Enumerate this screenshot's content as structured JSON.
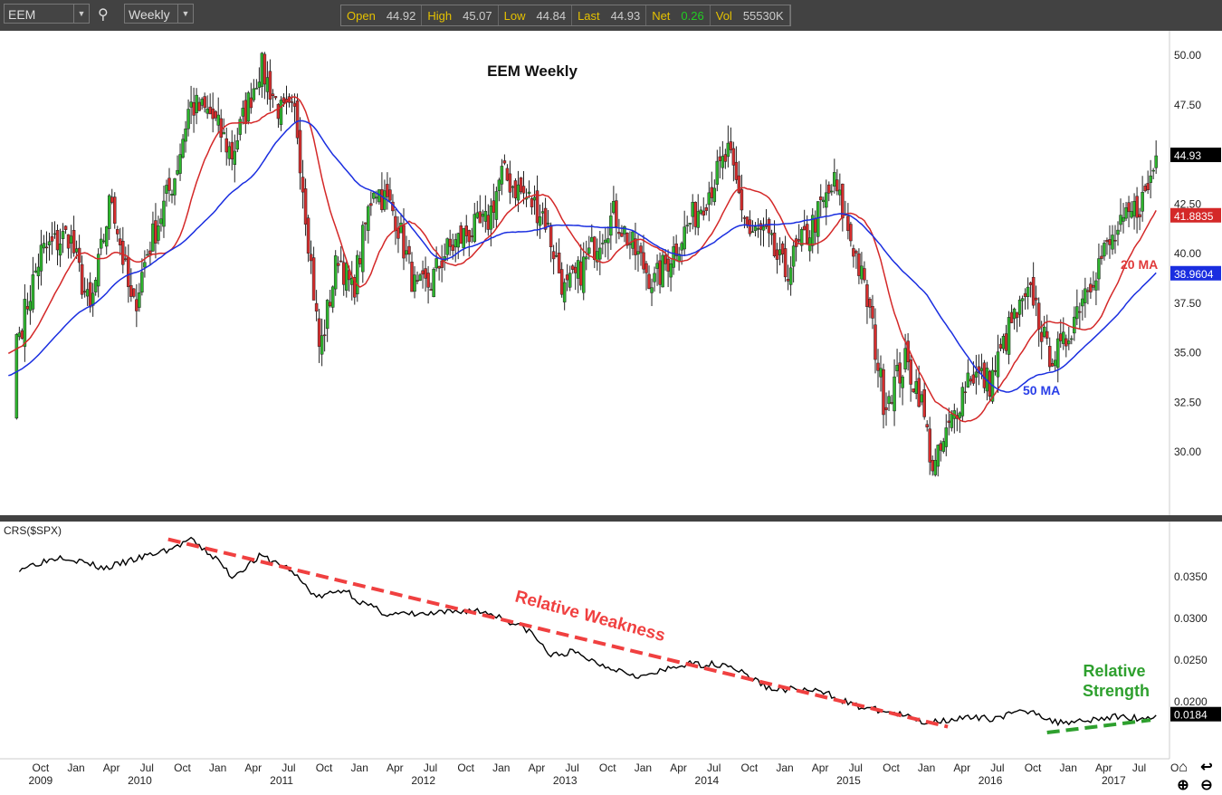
{
  "toolbar": {
    "symbol": "EEM",
    "period": "Weekly",
    "quote": [
      {
        "label": "Open",
        "value": "44.92"
      },
      {
        "label": "High",
        "value": "45.07"
      },
      {
        "label": "Low",
        "value": "44.84"
      },
      {
        "label": "Last",
        "value": "44.93"
      },
      {
        "label": "Net",
        "value": "0.26"
      },
      {
        "label": "Vol",
        "value": "55530K"
      }
    ]
  },
  "colors": {
    "up": "#2db52d",
    "down": "#d62d2d",
    "ma20": "#d42828",
    "ma50": "#1a2ee0",
    "weak": "#f04040",
    "strong": "#2ea02e",
    "net": "#22cc22"
  },
  "chart_data": [
    {
      "type": "candlestick",
      "title": "EEM Weekly",
      "ylim": [
        27.5,
        51.2
      ],
      "yticks": [
        "50.00",
        "47.50",
        "42.50",
        "40.00",
        "37.50",
        "35.00",
        "32.50",
        "30.00"
      ],
      "close_keypoints": [
        [
          2009.6,
          36
        ],
        [
          2009.75,
          40
        ],
        [
          2009.95,
          41
        ],
        [
          2010.1,
          37
        ],
        [
          2010.25,
          43
        ],
        [
          2010.4,
          37
        ],
        [
          2010.5,
          40
        ],
        [
          2010.7,
          44
        ],
        [
          2010.8,
          47.5
        ],
        [
          2010.95,
          47
        ],
        [
          2011.1,
          45
        ],
        [
          2011.3,
          49.5
        ],
        [
          2011.45,
          47
        ],
        [
          2011.55,
          47
        ],
        [
          2011.65,
          40
        ],
        [
          2011.72,
          35
        ],
        [
          2011.85,
          40
        ],
        [
          2011.95,
          38
        ],
        [
          2012.1,
          43.5
        ],
        [
          2012.25,
          42
        ],
        [
          2012.4,
          38
        ],
        [
          2012.5,
          38.5
        ],
        [
          2012.6,
          40
        ],
        [
          2012.75,
          41
        ],
        [
          2012.9,
          41.5
        ],
        [
          2013.0,
          44
        ],
        [
          2013.15,
          43
        ],
        [
          2013.3,
          42
        ],
        [
          2013.45,
          38
        ],
        [
          2013.55,
          39
        ],
        [
          2013.7,
          41
        ],
        [
          2013.8,
          42
        ],
        [
          2013.95,
          40
        ],
        [
          2014.08,
          38.5
        ],
        [
          2014.2,
          40
        ],
        [
          2014.45,
          43
        ],
        [
          2014.6,
          45
        ],
        [
          2014.75,
          41
        ],
        [
          2014.85,
          41
        ],
        [
          2015.0,
          39
        ],
        [
          2015.2,
          41.5
        ],
        [
          2015.35,
          43.5
        ],
        [
          2015.5,
          40
        ],
        [
          2015.6,
          37
        ],
        [
          2015.7,
          32.5
        ],
        [
          2015.85,
          34.5
        ],
        [
          2015.95,
          33
        ],
        [
          2016.05,
          29
        ],
        [
          2016.15,
          31
        ],
        [
          2016.3,
          34
        ],
        [
          2016.45,
          33.5
        ],
        [
          2016.6,
          36.5
        ],
        [
          2016.75,
          38
        ],
        [
          2016.85,
          35
        ],
        [
          2016.95,
          35
        ],
        [
          2017.1,
          38
        ],
        [
          2017.25,
          40
        ],
        [
          2017.4,
          41.5
        ],
        [
          2017.55,
          43
        ],
        [
          2017.62,
          44.93
        ]
      ],
      "last_price": "44.93",
      "ma20_value": "41.8835",
      "ma50_value": "38.9604",
      "annotations": {
        "ma20": "20 MA",
        "ma50": "50 MA"
      }
    },
    {
      "type": "line",
      "title": "CRS($SPX)",
      "ylim": [
        0.016,
        0.04
      ],
      "yticks": [
        "0.0350",
        "0.0300",
        "0.0250",
        "0.0200"
      ],
      "keypoints": [
        [
          2009.6,
          0.036
        ],
        [
          2009.9,
          0.0375
        ],
        [
          2010.2,
          0.036
        ],
        [
          2010.7,
          0.0385
        ],
        [
          2010.8,
          0.0395
        ],
        [
          2011.0,
          0.037
        ],
        [
          2011.1,
          0.035
        ],
        [
          2011.3,
          0.0375
        ],
        [
          2011.5,
          0.036
        ],
        [
          2011.7,
          0.0325
        ],
        [
          2011.9,
          0.0335
        ],
        [
          2012.0,
          0.032
        ],
        [
          2012.2,
          0.0305
        ],
        [
          2012.5,
          0.0305
        ],
        [
          2012.8,
          0.031
        ],
        [
          2012.95,
          0.0305
        ],
        [
          2013.2,
          0.0285
        ],
        [
          2013.35,
          0.0255
        ],
        [
          2013.5,
          0.026
        ],
        [
          2013.7,
          0.0245
        ],
        [
          2014.0,
          0.023
        ],
        [
          2014.3,
          0.0245
        ],
        [
          2014.6,
          0.0245
        ],
        [
          2014.9,
          0.0215
        ],
        [
          2015.1,
          0.0215
        ],
        [
          2015.3,
          0.021
        ],
        [
          2015.5,
          0.0195
        ],
        [
          2015.8,
          0.0185
        ],
        [
          2016.0,
          0.0175
        ],
        [
          2016.2,
          0.018
        ],
        [
          2016.45,
          0.018
        ],
        [
          2016.6,
          0.0185
        ],
        [
          2016.75,
          0.019
        ],
        [
          2016.9,
          0.0175
        ],
        [
          2017.1,
          0.0178
        ],
        [
          2017.35,
          0.0182
        ],
        [
          2017.55,
          0.018
        ],
        [
          2017.62,
          0.0184
        ]
      ],
      "last_value": "0.0184",
      "trendlines": [
        {
          "name": "relative-weakness",
          "from": [
            2010.65,
            0.0395
          ],
          "to": [
            2016.15,
            0.017
          ]
        },
        {
          "name": "relative-strength",
          "from": [
            2016.85,
            0.0163
          ],
          "to": [
            2017.58,
            0.0178
          ]
        }
      ],
      "annotations": {
        "weak": "Relative Weakness",
        "strong1": "Relative",
        "strong2": "Strength"
      }
    }
  ],
  "xaxis": {
    "months": [
      [
        2009.75,
        "Oct"
      ],
      [
        2010,
        "Jan"
      ],
      [
        2010.25,
        "Apr"
      ],
      [
        2010.5,
        "Jul"
      ],
      [
        2010.75,
        "Oct"
      ],
      [
        2011,
        "Jan"
      ],
      [
        2011.25,
        "Apr"
      ],
      [
        2011.5,
        "Jul"
      ],
      [
        2011.75,
        "Oct"
      ],
      [
        2012,
        "Jan"
      ],
      [
        2012.25,
        "Apr"
      ],
      [
        2012.5,
        "Jul"
      ],
      [
        2012.75,
        "Oct"
      ],
      [
        2013,
        "Jan"
      ],
      [
        2013.25,
        "Apr"
      ],
      [
        2013.5,
        "Jul"
      ],
      [
        2013.75,
        "Oct"
      ],
      [
        2014,
        "Jan"
      ],
      [
        2014.25,
        "Apr"
      ],
      [
        2014.5,
        "Jul"
      ],
      [
        2014.75,
        "Oct"
      ],
      [
        2015,
        "Jan"
      ],
      [
        2015.25,
        "Apr"
      ],
      [
        2015.5,
        "Jul"
      ],
      [
        2015.75,
        "Oct"
      ],
      [
        2016,
        "Jan"
      ],
      [
        2016.25,
        "Apr"
      ],
      [
        2016.5,
        "Jul"
      ],
      [
        2016.75,
        "Oct"
      ],
      [
        2017,
        "Jan"
      ],
      [
        2017.25,
        "Apr"
      ],
      [
        2017.5,
        "Jul"
      ],
      [
        2017.75,
        "O"
      ]
    ],
    "years": [
      [
        2009.75,
        "2009"
      ],
      [
        2010.45,
        "2010"
      ],
      [
        2011.45,
        "2011"
      ],
      [
        2012.45,
        "2012"
      ],
      [
        2013.45,
        "2013"
      ],
      [
        2014.45,
        "2014"
      ],
      [
        2015.45,
        "2015"
      ],
      [
        2016.45,
        "2016"
      ],
      [
        2017.32,
        "2017"
      ]
    ]
  }
}
